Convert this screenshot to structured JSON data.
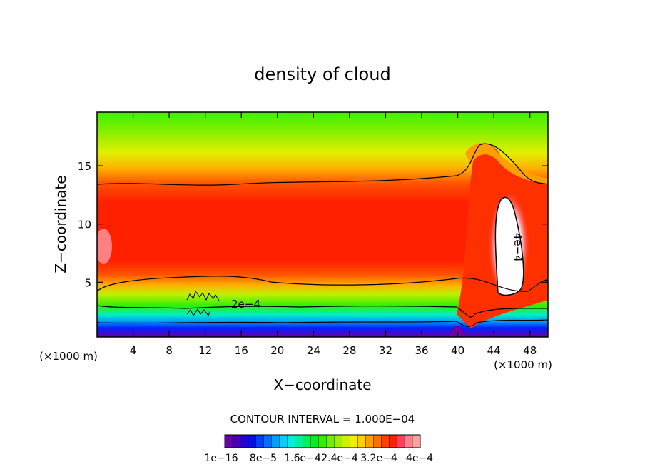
{
  "chart_data": {
    "type": "heatmap",
    "title": "density of cloud",
    "xlabel": "X−coordinate",
    "ylabel": "Z−coordinate",
    "x_unit_left": "(×1000 m)",
    "x_unit_right": "(×1000 m)",
    "xlim": [
      0,
      50
    ],
    "ylim": [
      0.3,
      19.6
    ],
    "x_ticks": [
      4,
      8,
      12,
      16,
      20,
      24,
      28,
      32,
      36,
      40,
      44,
      48
    ],
    "y_ticks": [
      5,
      10,
      15
    ],
    "contour_labels": [
      {
        "text": "2e−4",
        "x": 16.5,
        "y": 2.8
      },
      {
        "text": "4e−4",
        "x": 46.3,
        "y": 8.0
      }
    ],
    "contour_interval_text": "CONTOUR INTERVAL = 1.000E−04",
    "colorbar_tick_labels": [
      "1e−16",
      "8e−5",
      "1.6e−4",
      "2.4e−4",
      "3.2e−4",
      "4e−4"
    ],
    "colorbar_colors": [
      "#6a00a8",
      "#4b00b8",
      "#2a00d0",
      "#0010e8",
      "#0040ff",
      "#0070ff",
      "#00a0ff",
      "#00d0ff",
      "#00f0e0",
      "#00f0a0",
      "#00f060",
      "#00f020",
      "#30f000",
      "#70f000",
      "#a0f000",
      "#d0f000",
      "#f0f000",
      "#ffd000",
      "#ffa000",
      "#ff7000",
      "#ff4000",
      "#ff2000",
      "#ff4060",
      "#ff8090",
      "#ffa0a0"
    ],
    "levels_description": "density values from 1e-16 to 4e-4 (kg per cubic meter)"
  }
}
